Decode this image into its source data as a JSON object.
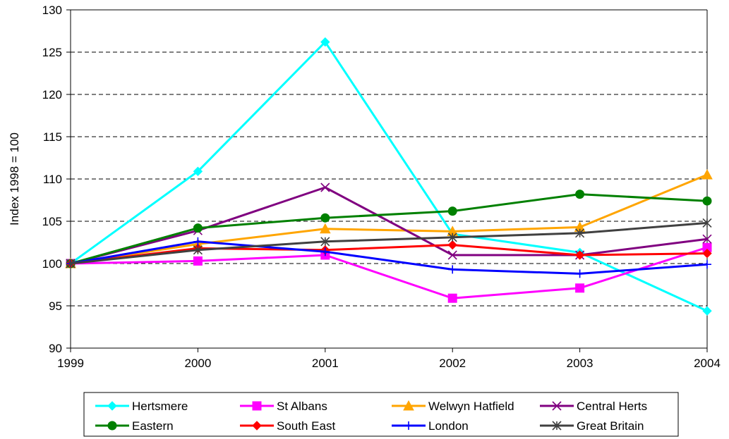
{
  "chart_data": {
    "type": "line",
    "title": "",
    "xlabel": "",
    "ylabel": "Index 1998 = 100",
    "x": [
      "1999",
      "2000",
      "2001",
      "2002",
      "2003",
      "2004"
    ],
    "ylim": [
      90,
      130
    ],
    "yticks": [
      "90",
      "95",
      "100",
      "105",
      "110",
      "115",
      "120",
      "125",
      "130"
    ],
    "grid": "horizontal dashed",
    "legend_position": "bottom",
    "series": [
      {
        "name": "Hertsmere",
        "color": "#00ffff",
        "marker": "diamond",
        "values": [
          100,
          110.9,
          126.2,
          103.5,
          101.3,
          94.4
        ]
      },
      {
        "name": "St Albans",
        "color": "#ff00ff",
        "marker": "square",
        "values": [
          100,
          100.3,
          101.0,
          95.9,
          97.1,
          101.9
        ]
      },
      {
        "name": "Welwyn Hatfield",
        "color": "#ffa500",
        "marker": "triangle",
        "values": [
          100,
          102.3,
          104.1,
          103.8,
          104.3,
          110.5
        ]
      },
      {
        "name": "Central Herts",
        "color": "#800080",
        "marker": "x",
        "values": [
          100,
          103.9,
          109.0,
          101.0,
          101.0,
          102.9
        ]
      },
      {
        "name": "Eastern",
        "color": "#008000",
        "marker": "circle",
        "values": [
          100,
          104.2,
          105.4,
          106.2,
          108.2,
          107.4
        ]
      },
      {
        "name": "South East",
        "color": "#ff0000",
        "marker": "diamond",
        "values": [
          100,
          101.8,
          101.6,
          102.2,
          101.0,
          101.2
        ]
      },
      {
        "name": "London",
        "color": "#0000ff",
        "marker": "plus",
        "values": [
          100,
          102.6,
          101.4,
          99.3,
          98.8,
          99.9
        ]
      },
      {
        "name": "Great Britain",
        "color": "#404040",
        "marker": "star",
        "values": [
          100,
          101.6,
          102.6,
          103.1,
          103.6,
          104.8
        ]
      }
    ]
  }
}
